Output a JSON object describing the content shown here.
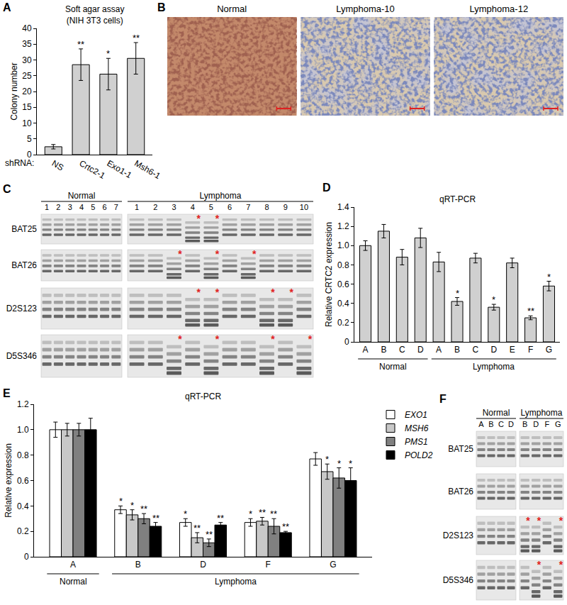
{
  "chart_data": [
    {
      "panel": "A",
      "type": "bar",
      "title": "Soft agar assay\n(NIH 3T3 cells)",
      "x_label": "shRNA:",
      "y_label": "Colony number",
      "categories": [
        "NS",
        "Crtc2-1",
        "Exo1-1",
        "Msh6-1"
      ],
      "values": [
        2.5,
        28.5,
        25.5,
        30.5
      ],
      "errors": [
        0.7,
        5,
        5,
        5
      ],
      "significance": [
        null,
        "**",
        "*",
        "**"
      ],
      "color": "#d0d0d0",
      "ylim": [
        0,
        40
      ],
      "yticks": [
        0,
        5,
        10,
        15,
        20,
        25,
        30,
        35,
        40
      ],
      "grid": false
    },
    {
      "panel": "D",
      "type": "bar",
      "title": "qRT-PCR",
      "y_label": "Relative CRTC2 expression",
      "categories": [
        "A",
        "B",
        "C",
        "D",
        "A",
        "B",
        "C",
        "D",
        "E",
        "F",
        "G"
      ],
      "groups": [
        "Normal",
        "Normal",
        "Normal",
        "Normal",
        "Lymphoma",
        "Lymphoma",
        "Lymphoma",
        "Lymphoma",
        "Lymphoma",
        "Lymphoma",
        "Lymphoma"
      ],
      "values": [
        1.0,
        1.15,
        0.88,
        1.08,
        0.83,
        0.42,
        0.87,
        0.36,
        0.82,
        0.25,
        0.58
      ],
      "errors": [
        0.05,
        0.07,
        0.08,
        0.1,
        0.1,
        0.04,
        0.05,
        0.03,
        0.05,
        0.02,
        0.05
      ],
      "significance": [
        null,
        null,
        null,
        null,
        null,
        "*",
        null,
        "*",
        null,
        "**",
        "*"
      ],
      "color": "#d0d0d0",
      "ylim": [
        0,
        1.4
      ],
      "yticks": [
        0,
        0.2,
        0.4,
        0.6,
        0.8,
        {
          "value": 1,
          "label": "1.0"
        },
        1.2,
        1.4
      ],
      "grid": false
    },
    {
      "panel": "E",
      "type": "bar",
      "title": "qRT-PCR",
      "y_label": "Relative expression",
      "categories": [
        "A",
        "B",
        "D",
        "F",
        "G"
      ],
      "groups": [
        "Normal",
        "Lymphoma",
        "Lymphoma",
        "Lymphoma",
        "Lymphoma"
      ],
      "series": [
        {
          "name": "EXO1",
          "color": "#ffffff",
          "values": [
            1.0,
            0.37,
            0.27,
            0.27,
            0.77
          ],
          "errors": [
            0.06,
            0.03,
            0.03,
            0.03,
            0.05
          ],
          "significance": [
            null,
            "*",
            "*",
            "*",
            null
          ]
        },
        {
          "name": "MSH6",
          "color": "#c8c8c8",
          "values": [
            1.0,
            0.33,
            0.15,
            0.28,
            0.67
          ],
          "errors": [
            0.05,
            0.04,
            0.04,
            0.03,
            0.06
          ],
          "significance": [
            null,
            "*",
            "**",
            "**",
            "*"
          ]
        },
        {
          "name": "PMS1",
          "color": "#808080",
          "values": [
            1.0,
            0.3,
            0.11,
            0.24,
            0.62
          ],
          "errors": [
            0.05,
            0.04,
            0.03,
            0.06,
            0.08
          ],
          "significance": [
            null,
            "**",
            "**",
            "**",
            "*"
          ]
        },
        {
          "name": "POLD2",
          "color": "#000000",
          "values": [
            1.0,
            0.24,
            0.25,
            0.19,
            0.6
          ],
          "errors": [
            0.09,
            0.03,
            0.02,
            0.01,
            0.1
          ],
          "significance": [
            null,
            "**",
            "**",
            "**",
            "*"
          ]
        }
      ],
      "legend": "right",
      "ylim": [
        0,
        1.2
      ],
      "yticks": [
        0,
        0.2,
        0.4,
        0.6,
        0.8,
        {
          "value": 1,
          "label": "1.0"
        },
        1.2
      ],
      "grid": false
    }
  ],
  "images": {
    "panel": "B",
    "labels": [
      "Normal",
      "Lymphoma-10",
      "Lymphoma-12"
    ]
  },
  "gels": [
    {
      "panel": "C",
      "star": "*",
      "groups": [
        {
          "label": "Normal",
          "lanes": [
            "1",
            "2",
            "3",
            "4",
            "5",
            "6",
            "7"
          ]
        },
        {
          "label": "Lymphoma",
          "lanes": [
            "1",
            "2",
            "3",
            "4",
            "5",
            "6",
            "7",
            "8",
            "9",
            "10"
          ]
        }
      ],
      "rows": [
        {
          "label": "BAT25",
          "starred": {
            "Lymphoma": [
              "4",
              "5"
            ]
          }
        },
        {
          "label": "BAT26",
          "starred": {
            "Lymphoma": [
              "3",
              "5",
              "7"
            ]
          }
        },
        {
          "label": "D2S123",
          "starred": {
            "Lymphoma": [
              "4",
              "5",
              "8",
              "9"
            ]
          }
        },
        {
          "label": "D5S346",
          "starred": {
            "Lymphoma": [
              "3",
              "5",
              "8",
              "10"
            ]
          }
        }
      ]
    },
    {
      "panel": "F",
      "star": "*",
      "groups": [
        {
          "label": "Normal",
          "lanes": [
            "A",
            "B",
            "C",
            "D"
          ]
        },
        {
          "label": "Lymphoma",
          "lanes": [
            "B",
            "D",
            "F",
            "G"
          ]
        }
      ],
      "rows": [
        {
          "label": "BAT25"
        },
        {
          "label": "BAT26"
        },
        {
          "label": "D2S123",
          "starred": {
            "Lymphoma": [
              "B",
              "D",
              "G"
            ]
          }
        },
        {
          "label": "D5S346",
          "starred": {
            "Lymphoma": [
              "D",
              "G"
            ]
          }
        }
      ]
    }
  ]
}
